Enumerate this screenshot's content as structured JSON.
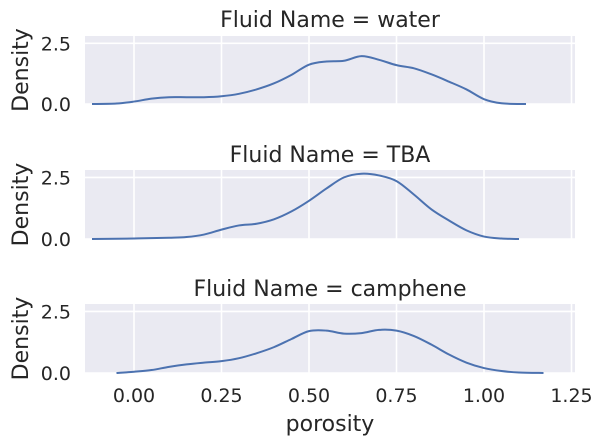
{
  "chart_data": {
    "type": "line",
    "style": {
      "panel_background": "#eaeaf2",
      "grid_color": "#ffffff",
      "line_color": "#4c72b0",
      "text_color": "#262626"
    },
    "grid": true,
    "shared_x": true,
    "xlabel": "porosity",
    "xlim": [
      -0.14,
      1.26
    ],
    "x_ticks": [
      "0.00",
      "0.25",
      "0.50",
      "0.75",
      "1.00",
      "1.25"
    ],
    "x_tick_values": [
      0,
      0.25,
      0.5,
      0.75,
      1.0,
      1.25
    ],
    "panels": [
      {
        "title": "Fluid Name = water",
        "ylabel": "Density",
        "ylim": [
          0,
          2.8
        ],
        "y_ticks": [
          "0.0",
          "2.5"
        ],
        "y_tick_values": [
          0,
          2.5
        ],
        "series": [
          {
            "x": [
              -0.12,
              -0.05,
              0.0,
              0.05,
              0.1,
              0.15,
              0.2,
              0.25,
              0.3,
              0.35,
              0.4,
              0.45,
              0.5,
              0.55,
              0.6,
              0.65,
              0.7,
              0.75,
              0.8,
              0.85,
              0.9,
              0.95,
              1.0,
              1.05,
              1.12
            ],
            "values": [
              0.0,
              0.02,
              0.1,
              0.22,
              0.28,
              0.28,
              0.28,
              0.32,
              0.42,
              0.6,
              0.85,
              1.2,
              1.62,
              1.75,
              1.78,
              1.97,
              1.82,
              1.6,
              1.47,
              1.22,
              0.92,
              0.6,
              0.2,
              0.03,
              0.0
            ]
          }
        ]
      },
      {
        "title": "Fluid Name = TBA",
        "ylabel": "Density",
        "ylim": [
          0,
          2.8
        ],
        "y_ticks": [
          "0.0",
          "2.5"
        ],
        "y_tick_values": [
          0,
          2.5
        ],
        "series": [
          {
            "x": [
              -0.12,
              0.0,
              0.1,
              0.15,
              0.2,
              0.25,
              0.3,
              0.35,
              0.4,
              0.45,
              0.5,
              0.55,
              0.6,
              0.65,
              0.7,
              0.75,
              0.8,
              0.85,
              0.9,
              0.95,
              1.0,
              1.05,
              1.1
            ],
            "values": [
              0.0,
              0.02,
              0.05,
              0.08,
              0.18,
              0.38,
              0.55,
              0.62,
              0.8,
              1.12,
              1.55,
              2.05,
              2.5,
              2.65,
              2.58,
              2.35,
              1.8,
              1.2,
              0.75,
              0.35,
              0.1,
              0.02,
              0.0
            ]
          }
        ]
      },
      {
        "title": "Fluid Name = camphene",
        "ylabel": "Density",
        "ylim": [
          0,
          2.8
        ],
        "y_ticks": [
          "0.0",
          "2.5"
        ],
        "y_tick_values": [
          0,
          2.5
        ],
        "series": [
          {
            "x": [
              -0.05,
              0.0,
              0.05,
              0.1,
              0.15,
              0.2,
              0.25,
              0.3,
              0.35,
              0.4,
              0.45,
              0.5,
              0.55,
              0.6,
              0.65,
              0.7,
              0.75,
              0.8,
              0.85,
              0.9,
              0.95,
              1.0,
              1.05,
              1.1,
              1.17
            ],
            "values": [
              0.0,
              0.05,
              0.12,
              0.25,
              0.35,
              0.42,
              0.48,
              0.6,
              0.8,
              1.05,
              1.38,
              1.7,
              1.72,
              1.6,
              1.62,
              1.75,
              1.72,
              1.5,
              1.15,
              0.75,
              0.42,
              0.2,
              0.08,
              0.02,
              0.0
            ]
          }
        ]
      }
    ]
  }
}
